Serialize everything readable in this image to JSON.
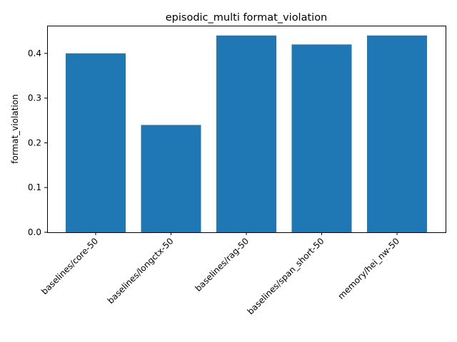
{
  "chart_data": {
    "type": "bar",
    "title": "episodic_multi format_violation",
    "xlabel": "",
    "ylabel": "format_violation",
    "categories": [
      "baselines/core-50",
      "baselines/longctx-50",
      "baselines/rag-50",
      "baselines/span_short-50",
      "memory/hei_nw-50"
    ],
    "values": [
      0.4,
      0.24,
      0.44,
      0.42,
      0.44
    ],
    "ylim": [
      0,
      0.462
    ],
    "yticks": [
      "0.0",
      "0.1",
      "0.2",
      "0.3",
      "0.4"
    ],
    "bar_color": "#1f77b4",
    "grid": false,
    "legend": "none"
  }
}
